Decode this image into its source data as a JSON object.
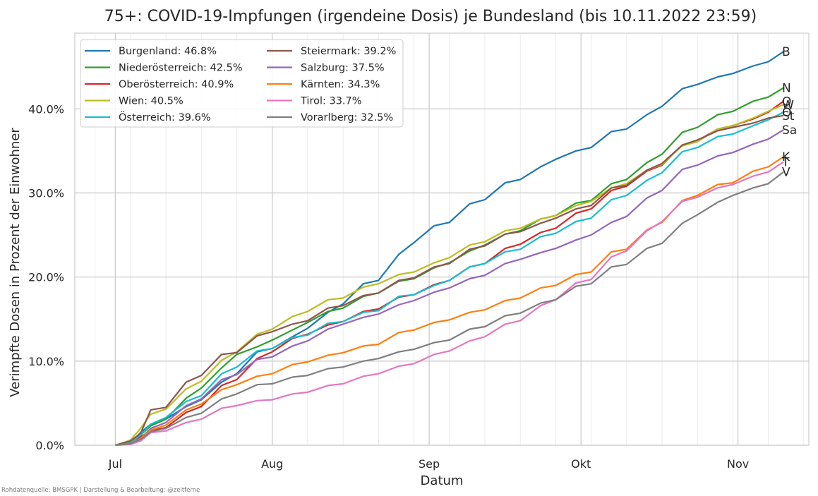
{
  "chart_data": {
    "type": "line",
    "title": "75+: COVID-19-Impfungen (irgendeine Dosis) je Bundesland (bis 10.11.2022 23:59)",
    "xlabel": "Datum",
    "ylabel": "Verimpfte Dosen in Prozent der Einwohner",
    "ylim": [
      0,
      49
    ],
    "y_ticks": [
      {
        "value": 0,
        "label": "0.0%"
      },
      {
        "value": 10,
        "label": "10.0%"
      },
      {
        "value": 20,
        "label": "20.0%"
      },
      {
        "value": 30,
        "label": "30.0%"
      },
      {
        "value": 40,
        "label": "40.0%"
      }
    ],
    "xlim": [
      "2022-06-23",
      "2022-11-15"
    ],
    "x_ticks": [
      {
        "date": "2022-07-01",
        "label": "Jul"
      },
      {
        "date": "2022-08-01",
        "label": "Aug"
      },
      {
        "date": "2022-09-01",
        "label": "Sep"
      },
      {
        "date": "2022-10-01",
        "label": "Okt"
      },
      {
        "date": "2022-11-01",
        "label": "Nov"
      }
    ],
    "x_minor_gridlines": [
      "2022-06-27",
      "2022-07-04",
      "2022-07-11",
      "2022-07-18",
      "2022-07-25",
      "2022-08-08",
      "2022-08-15",
      "2022-08-22",
      "2022-08-29",
      "2022-09-05",
      "2022-09-12",
      "2022-09-19",
      "2022-09-26",
      "2022-10-03",
      "2022-10-10",
      "2022-10-17",
      "2022-10-24",
      "2022-10-31",
      "2022-11-07",
      "2022-11-14"
    ],
    "grid": true,
    "legend_placement": "top-left",
    "x": [
      "2022-07-01",
      "2022-07-04",
      "2022-07-06",
      "2022-07-08",
      "2022-07-11",
      "2022-07-15",
      "2022-07-18",
      "2022-07-22",
      "2022-07-25",
      "2022-07-29",
      "2022-08-01",
      "2022-08-05",
      "2022-08-08",
      "2022-08-12",
      "2022-08-15",
      "2022-08-19",
      "2022-08-22",
      "2022-08-26",
      "2022-08-29",
      "2022-09-02",
      "2022-09-05",
      "2022-09-09",
      "2022-09-12",
      "2022-09-16",
      "2022-09-19",
      "2022-09-23",
      "2022-09-26",
      "2022-09-30",
      "2022-10-03",
      "2022-10-07",
      "2022-10-10",
      "2022-10-14",
      "2022-10-17",
      "2022-10-21",
      "2022-10-24",
      "2022-10-28",
      "2022-10-31",
      "2022-11-04",
      "2022-11-07",
      "2022-11-10"
    ],
    "series": [
      {
        "name": "Burgenland: 46.8%",
        "end_label": "B",
        "color": "#1f77b4",
        "values": [
          0,
          0.3,
          1.5,
          2.5,
          3.1,
          4.6,
          5.4,
          7.5,
          8.5,
          11.1,
          11.5,
          12.9,
          13.9,
          15.8,
          16.8,
          19.2,
          19.6,
          22.7,
          24.1,
          26.1,
          26.5,
          28.7,
          29.2,
          31.2,
          31.6,
          33.1,
          34.0,
          35.0,
          35.4,
          37.3,
          37.6,
          39.3,
          40.3,
          42.4,
          42.9,
          43.8,
          44.2,
          45.1,
          45.6,
          46.8
        ]
      },
      {
        "name": "Niederösterreich: 42.5%",
        "end_label": "N",
        "color": "#2ca02c",
        "values": [
          0,
          0.4,
          1.2,
          2.3,
          3.1,
          5.6,
          6.8,
          9.2,
          10.8,
          11.7,
          12.5,
          13.7,
          14.6,
          15.9,
          16.3,
          17.7,
          18.1,
          19.5,
          19.8,
          21.1,
          21.7,
          23.1,
          23.8,
          25.1,
          25.5,
          26.9,
          27.3,
          28.8,
          29.1,
          31.1,
          31.6,
          33.6,
          34.6,
          37.2,
          37.8,
          39.3,
          39.7,
          40.9,
          41.4,
          42.5
        ]
      },
      {
        "name": "Oberösterreich: 40.9%",
        "end_label": "O",
        "color": "#d62728",
        "values": [
          0,
          0.3,
          1.0,
          1.7,
          2.1,
          3.9,
          4.6,
          7.1,
          7.8,
          10.3,
          11.1,
          12.7,
          13.2,
          14.3,
          14.7,
          15.9,
          16.2,
          17.6,
          17.9,
          19.1,
          19.6,
          21.2,
          21.6,
          23.4,
          23.9,
          25.3,
          25.8,
          27.6,
          28.1,
          30.3,
          30.8,
          32.6,
          33.3,
          35.7,
          36.2,
          37.6,
          38.0,
          38.8,
          39.6,
          40.9
        ]
      },
      {
        "name": "Wien: 40.5%",
        "end_label": "W",
        "color": "#bcbd22",
        "values": [
          0,
          0.6,
          2.0,
          3.7,
          4.3,
          6.7,
          7.6,
          10.1,
          11.1,
          13.2,
          13.8,
          15.3,
          15.9,
          17.3,
          17.5,
          18.8,
          19.2,
          20.3,
          20.6,
          21.7,
          22.3,
          23.8,
          24.2,
          25.5,
          25.8,
          26.9,
          27.3,
          28.5,
          29.0,
          30.6,
          31.1,
          32.7,
          33.4,
          35.6,
          36.1,
          37.6,
          38.0,
          38.9,
          39.7,
          40.5
        ]
      },
      {
        "name": "Österreich: 39.6%",
        "end_label": "Ö",
        "color": "#17becf",
        "values": [
          0,
          0.3,
          1.2,
          2.5,
          3.3,
          5.2,
          5.9,
          8.5,
          9.3,
          11.2,
          11.5,
          12.8,
          13.1,
          14.5,
          14.7,
          15.8,
          16.0,
          17.7,
          17.9,
          19.0,
          19.6,
          21.2,
          21.6,
          23.0,
          23.3,
          24.8,
          25.2,
          26.6,
          27.0,
          29.2,
          29.7,
          31.5,
          32.4,
          34.9,
          35.4,
          36.7,
          37.0,
          38.0,
          38.7,
          39.6
        ]
      },
      {
        "name": "Steiermark: 39.2%",
        "end_label": "St",
        "color": "#8c564b",
        "values": [
          0,
          0.5,
          1.4,
          4.2,
          4.5,
          7.5,
          8.3,
          10.8,
          11.0,
          13.0,
          13.5,
          14.4,
          14.8,
          16.3,
          16.6,
          17.8,
          18.1,
          19.6,
          19.9,
          21.2,
          21.6,
          23.3,
          23.7,
          25.1,
          25.4,
          26.4,
          27.0,
          28.1,
          28.5,
          30.6,
          30.9,
          32.7,
          33.5,
          35.7,
          36.3,
          37.4,
          37.8,
          38.3,
          38.9,
          39.2
        ]
      },
      {
        "name": "Salzburg: 37.5%",
        "end_label": "Sa",
        "color": "#9467bd",
        "values": [
          0,
          0.2,
          0.8,
          2.0,
          2.7,
          4.7,
          5.5,
          7.8,
          8.4,
          10.2,
          10.5,
          11.8,
          12.4,
          13.8,
          14.4,
          15.2,
          15.6,
          16.7,
          17.2,
          18.2,
          18.7,
          19.8,
          20.2,
          21.6,
          22.1,
          22.9,
          23.4,
          24.4,
          25.0,
          26.5,
          27.2,
          29.4,
          30.3,
          32.8,
          33.3,
          34.4,
          34.8,
          35.8,
          36.4,
          37.5
        ]
      },
      {
        "name": "Kärnten: 34.3%",
        "end_label": "K",
        "color": "#ff7f0e",
        "values": [
          0,
          0.2,
          0.8,
          1.8,
          2.4,
          4.2,
          4.9,
          6.6,
          7.2,
          8.2,
          8.5,
          9.6,
          9.9,
          10.7,
          11.0,
          11.8,
          12.0,
          13.4,
          13.7,
          14.6,
          14.9,
          15.8,
          16.1,
          17.2,
          17.5,
          18.7,
          19.0,
          20.3,
          20.6,
          23.0,
          23.3,
          25.6,
          26.5,
          29.1,
          29.7,
          31.0,
          31.2,
          32.6,
          33.1,
          34.3
        ]
      },
      {
        "name": "Tirol: 33.7%",
        "end_label": "T",
        "color": "#e377c2",
        "values": [
          0,
          0.1,
          0.5,
          1.5,
          1.7,
          2.7,
          3.1,
          4.4,
          4.7,
          5.3,
          5.4,
          6.1,
          6.3,
          7.1,
          7.3,
          8.2,
          8.5,
          9.4,
          9.7,
          10.8,
          11.2,
          12.4,
          12.9,
          14.4,
          14.8,
          16.6,
          17.3,
          19.3,
          19.7,
          22.4,
          23.1,
          25.5,
          26.6,
          29.0,
          29.5,
          30.6,
          31.0,
          32.0,
          32.5,
          33.7
        ]
      },
      {
        "name": "Vorarlberg: 32.5%",
        "end_label": "V",
        "color": "#7f7f7f",
        "values": [
          0,
          0.2,
          0.7,
          1.6,
          2.0,
          3.3,
          3.8,
          5.5,
          6.1,
          7.2,
          7.3,
          8.1,
          8.3,
          9.1,
          9.3,
          10.0,
          10.3,
          11.1,
          11.4,
          12.2,
          12.5,
          13.8,
          14.1,
          15.4,
          15.7,
          16.9,
          17.3,
          18.9,
          19.2,
          21.2,
          21.5,
          23.4,
          24.0,
          26.4,
          27.4,
          28.9,
          29.7,
          30.6,
          31.1,
          32.5
        ]
      }
    ]
  },
  "source_note": "Rohdatenquelle: BMSGPK | Darstellung & Bearbeitung: @zeitferne"
}
